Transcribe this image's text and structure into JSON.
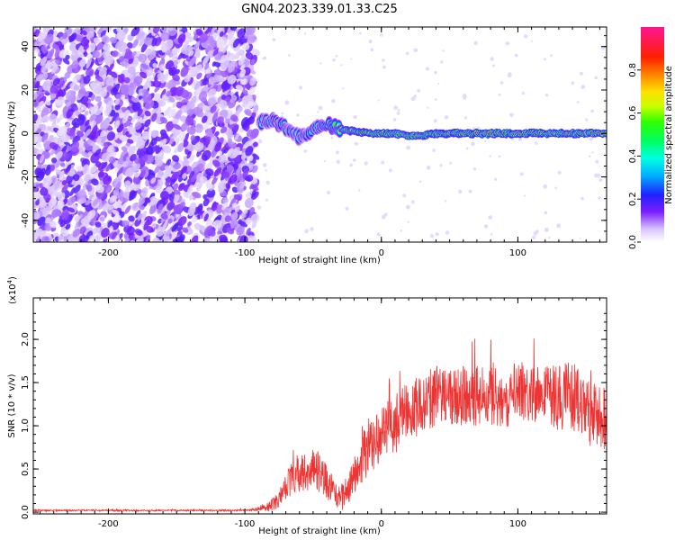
{
  "title": "GN04.2023.339.01.33.C25",
  "chart_data": [
    {
      "type": "heatmap",
      "xlabel": "Height of straight line (km)",
      "ylabel": "Frequency (Hz)",
      "xlim": [
        -255,
        165
      ],
      "ylim": [
        -50,
        49
      ],
      "xticks": [
        -200,
        -100,
        0,
        100
      ],
      "yticks": [
        -40,
        -20,
        0,
        20,
        40
      ],
      "grid": false,
      "colorbar": {
        "label": "Normalized spectral amplitude",
        "range": [
          0.0,
          1.0
        ],
        "ticks": [
          0.0,
          0.2,
          0.4,
          0.6,
          0.8
        ],
        "tick_labels": [
          "0.0",
          "0.2",
          "0.4",
          "0.6",
          "0.8"
        ],
        "colormap": "rainbow (white, purple, blue, cyan, green, yellow, orange, red, magenta)"
      },
      "noise_region": {
        "x_range": [
          -255,
          -92
        ],
        "amplitude_range": [
          0.0,
          0.15
        ]
      },
      "signal_track": [
        {
          "x": -90,
          "freq": 5,
          "amplitude": 0.4
        },
        {
          "x": -80,
          "freq": 6,
          "amplitude": 0.45
        },
        {
          "x": -70,
          "freq": 3,
          "amplitude": 0.45
        },
        {
          "x": -60,
          "freq": -2,
          "amplitude": 0.4
        },
        {
          "x": -50,
          "freq": 2,
          "amplitude": 0.45
        },
        {
          "x": -40,
          "freq": 4,
          "amplitude": 0.5
        },
        {
          "x": -30,
          "freq": 2,
          "amplitude": 0.65
        },
        {
          "x": -20,
          "freq": 1,
          "amplitude": 0.75
        },
        {
          "x": -10,
          "freq": 0,
          "amplitude": 0.85
        },
        {
          "x": 0,
          "freq": 0,
          "amplitude": 0.85
        },
        {
          "x": 10,
          "freq": 0,
          "amplitude": 0.9
        },
        {
          "x": 20,
          "freq": -1,
          "amplitude": 0.9
        },
        {
          "x": 30,
          "freq": -1,
          "amplitude": 0.9
        },
        {
          "x": 40,
          "freq": 0,
          "amplitude": 0.9
        },
        {
          "x": 50,
          "freq": 0,
          "amplitude": 0.9
        },
        {
          "x": 60,
          "freq": 0,
          "amplitude": 0.85
        },
        {
          "x": 70,
          "freq": 0,
          "amplitude": 0.95
        },
        {
          "x": 80,
          "freq": 0,
          "amplitude": 0.9
        },
        {
          "x": 90,
          "freq": 0,
          "amplitude": 0.9
        },
        {
          "x": 100,
          "freq": 0,
          "amplitude": 0.9
        },
        {
          "x": 110,
          "freq": 0,
          "amplitude": 0.9
        },
        {
          "x": 120,
          "freq": 0,
          "amplitude": 0.9
        },
        {
          "x": 130,
          "freq": 0,
          "amplitude": 0.9
        },
        {
          "x": 140,
          "freq": 0,
          "amplitude": 0.9
        },
        {
          "x": 150,
          "freq": 0,
          "amplitude": 0.9
        },
        {
          "x": 160,
          "freq": 0,
          "amplitude": 0.9
        }
      ]
    },
    {
      "type": "line",
      "xlabel": "Height of straight line (km)",
      "ylabel": "SNR (10 * v/v)",
      "y_multiplier_label": "(x10",
      "y_multiplier_exponent": "4",
      "y_multiplier_close": ")",
      "xlim": [
        -255,
        165
      ],
      "ylim": [
        -0.02,
        2.48
      ],
      "xticks": [
        -200,
        -100,
        0,
        100
      ],
      "yticks": [
        0.0,
        0.5,
        1.0,
        1.5,
        2.0
      ],
      "ytick_labels": [
        "0.0",
        "0.5",
        "1.0",
        "1.5",
        "2.0"
      ],
      "grid": false,
      "color": "#ee3333",
      "series": [
        {
          "x": [
            -255,
            -150,
            -100,
            -92,
            -80,
            -75,
            -70,
            -65,
            -60,
            -55,
            -50,
            -45,
            -40,
            -35,
            -30,
            -25,
            -20,
            -15,
            -10,
            -5,
            0,
            5,
            10,
            15,
            20,
            25,
            30,
            35,
            40,
            45,
            50,
            55,
            60,
            65,
            70,
            75,
            80,
            85,
            90,
            95,
            100,
            105,
            110,
            115,
            120,
            125,
            130,
            135,
            140,
            145,
            150,
            155,
            160,
            165
          ],
          "y": [
            0.02,
            0.02,
            0.02,
            0.03,
            0.08,
            0.15,
            0.3,
            0.4,
            0.45,
            0.5,
            0.5,
            0.45,
            0.35,
            0.25,
            0.15,
            0.25,
            0.45,
            0.6,
            0.7,
            0.8,
            0.9,
            0.95,
            1.0,
            1.1,
            1.15,
            1.2,
            1.25,
            1.3,
            1.35,
            1.35,
            1.35,
            1.35,
            1.35,
            1.35,
            1.35,
            1.35,
            1.35,
            1.35,
            1.3,
            1.35,
            1.4,
            1.4,
            1.4,
            1.35,
            1.35,
            1.35,
            1.3,
            1.35,
            1.3,
            1.3,
            1.2,
            1.1,
            1.1,
            1.1
          ],
          "noise_amplitude": [
            0.01,
            0.01,
            0.01,
            0.02,
            0.08,
            0.1,
            0.15,
            0.2,
            0.25,
            0.25,
            0.25,
            0.25,
            0.2,
            0.15,
            0.15,
            0.2,
            0.25,
            0.3,
            0.3,
            0.3,
            0.3,
            0.3,
            0.35,
            0.35,
            0.35,
            0.35,
            0.35,
            0.35,
            0.35,
            0.35,
            0.35,
            0.35,
            0.35,
            0.35,
            0.35,
            0.35,
            0.35,
            0.35,
            0.35,
            0.35,
            0.35,
            0.35,
            0.35,
            0.35,
            0.35,
            0.4,
            0.4,
            0.4,
            0.4,
            0.4,
            0.4,
            0.4,
            0.4,
            0.4
          ]
        }
      ]
    }
  ]
}
